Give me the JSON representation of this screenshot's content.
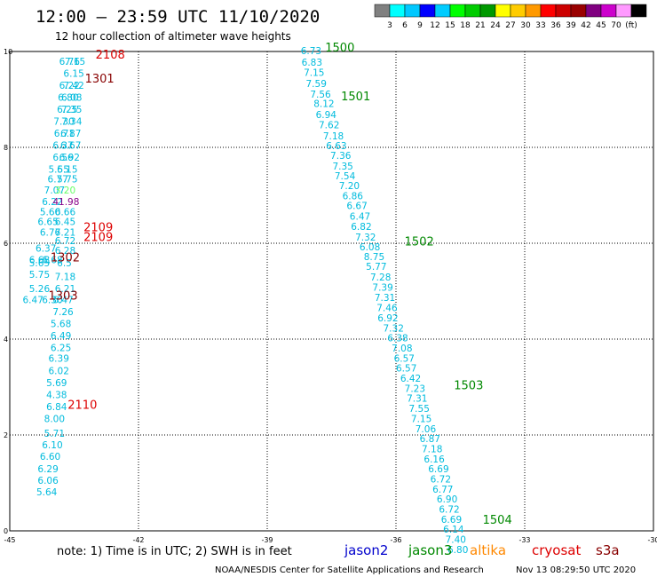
{
  "header": {
    "title": "12:00 – 23:59 UTC 11/10/2020",
    "subtitle": "12 hour collection of altimeter wave heights"
  },
  "colorbar": {
    "colors": [
      "#808080",
      "#00ffff",
      "#00c8ff",
      "#0000ff",
      "#00ccff",
      "#00ff00",
      "#00cc00",
      "#009900",
      "#ffff00",
      "#ffcc00",
      "#ff9900",
      "#ff0000",
      "#cc0000",
      "#990000",
      "#800080",
      "#cc00cc",
      "#ff99ff",
      "#000000"
    ],
    "labels": [
      "3",
      "6",
      "9",
      "12",
      "15",
      "18",
      "21",
      "24",
      "27",
      "30",
      "33",
      "36",
      "39",
      "42",
      "45",
      "70",
      "(ft)"
    ]
  },
  "footer": {
    "note": "note:  1) Time is in UTC; 2) SWH is in feet",
    "credit": "NOAA/NESDIS Center for Satellite Applications and Research",
    "timestamp": "Nov 13 08:29:50 UTC 2020",
    "satellites": [
      {
        "name": "jason2",
        "color": "#0000cc"
      },
      {
        "name": "jason3",
        "color": "#008800"
      },
      {
        "name": "altika",
        "color": "#ff8800"
      },
      {
        "name": "cryosat",
        "color": "#dd0000"
      },
      {
        "name": "s3a",
        "color": "#880000"
      }
    ]
  },
  "chart_data": {
    "type": "scatter",
    "title": "12 hour collection of altimeter wave heights",
    "xlim": [
      -45,
      -30
    ],
    "ylim": [
      0,
      10
    ],
    "xticks": [
      "-45",
      "-42",
      "-39",
      "-36",
      "-33",
      "-30"
    ],
    "yticks": [
      "0",
      "2",
      "4",
      "6",
      "8",
      "10"
    ],
    "grid": true,
    "points": [
      {
        "x": -43.85,
        "y": 9.72,
        "v": "6.76",
        "color": "#00bbdd"
      },
      {
        "x": -43.72,
        "y": 9.72,
        "v": "7.15",
        "color": "#00bbdd"
      },
      {
        "x": -43.75,
        "y": 9.47,
        "v": "6.15",
        "color": "#00bbdd"
      },
      {
        "x": -43.85,
        "y": 9.22,
        "v": "6.22",
        "color": "#00bbdd"
      },
      {
        "x": -43.75,
        "y": 9.22,
        "v": "7.42",
        "color": "#00bbdd"
      },
      {
        "x": -43.88,
        "y": 8.97,
        "v": "6.80",
        "color": "#00bbdd"
      },
      {
        "x": -43.8,
        "y": 8.97,
        "v": "6.08",
        "color": "#00bbdd"
      },
      {
        "x": -43.9,
        "y": 8.72,
        "v": "6.25",
        "color": "#00bbdd"
      },
      {
        "x": -43.8,
        "y": 8.72,
        "v": "7.35",
        "color": "#00bbdd"
      },
      {
        "x": -43.98,
        "y": 8.47,
        "v": "7.30",
        "color": "#00bbdd"
      },
      {
        "x": -43.8,
        "y": 8.47,
        "v": "7.34",
        "color": "#00bbdd"
      },
      {
        "x": -43.97,
        "y": 8.22,
        "v": "6.71",
        "color": "#00bbdd"
      },
      {
        "x": -43.82,
        "y": 8.22,
        "v": "6.87",
        "color": "#00bbdd"
      },
      {
        "x": -44.0,
        "y": 7.97,
        "v": "6.37",
        "color": "#00bbdd"
      },
      {
        "x": -43.82,
        "y": 7.97,
        "v": "6.67",
        "color": "#00bbdd"
      },
      {
        "x": -44.0,
        "y": 7.72,
        "v": "6.56",
        "color": "#00bbdd"
      },
      {
        "x": -43.85,
        "y": 7.72,
        "v": "6.92",
        "color": "#00bbdd"
      },
      {
        "x": -44.1,
        "y": 7.47,
        "v": "5.55",
        "color": "#00bbdd"
      },
      {
        "x": -43.9,
        "y": 7.47,
        "v": "6.15",
        "color": "#00bbdd"
      },
      {
        "x": -44.12,
        "y": 7.27,
        "v": "6.77",
        "color": "#00bbdd"
      },
      {
        "x": -43.9,
        "y": 7.27,
        "v": "5.75",
        "color": "#00bbdd"
      },
      {
        "x": -44.2,
        "y": 7.04,
        "v": "7.07",
        "color": "#00bbdd"
      },
      {
        "x": -43.95,
        "y": 7.04,
        "v": "3.20",
        "color": "#66ff66"
      },
      {
        "x": -44.25,
        "y": 6.8,
        "v": "6.22",
        "color": "#00bbdd"
      },
      {
        "x": -44.0,
        "y": 6.8,
        "v": "41.98",
        "color": "#880088"
      },
      {
        "x": -44.3,
        "y": 6.58,
        "v": "5.60",
        "color": "#00bbdd"
      },
      {
        "x": -43.95,
        "y": 6.58,
        "v": "6.66",
        "color": "#00bbdd"
      },
      {
        "x": -44.35,
        "y": 6.38,
        "v": "6.65",
        "color": "#00bbdd"
      },
      {
        "x": -43.95,
        "y": 6.38,
        "v": "6.45",
        "color": "#00bbdd"
      },
      {
        "x": -44.3,
        "y": 6.16,
        "v": "6.76",
        "color": "#00bbdd"
      },
      {
        "x": -43.95,
        "y": 6.16,
        "v": "7.21",
        "color": "#00bbdd"
      },
      {
        "x": -43.95,
        "y": 5.98,
        "v": "6.72",
        "color": "#00bbdd"
      },
      {
        "x": -44.4,
        "y": 5.82,
        "v": "6.37",
        "color": "#00bbdd"
      },
      {
        "x": -43.95,
        "y": 5.78,
        "v": "6.28",
        "color": "#00bbdd"
      },
      {
        "x": -44.55,
        "y": 5.58,
        "v": "6.68",
        "color": "#00bbdd"
      },
      {
        "x": -44.25,
        "y": 5.58,
        "v": "6.68",
        "color": "#00bbdd"
      },
      {
        "x": -44.55,
        "y": 5.52,
        "v": "5.65",
        "color": "#00bbdd"
      },
      {
        "x": -43.9,
        "y": 5.52,
        "v": "6.5",
        "color": "#00bbdd"
      },
      {
        "x": -44.55,
        "y": 5.28,
        "v": "5.75",
        "color": "#00bbdd"
      },
      {
        "x": -43.95,
        "y": 5.23,
        "v": "7.18",
        "color": "#00bbdd"
      },
      {
        "x": -44.55,
        "y": 4.98,
        "v": "5.26",
        "color": "#00bbdd"
      },
      {
        "x": -43.95,
        "y": 4.98,
        "v": "6.21",
        "color": "#00bbdd"
      },
      {
        "x": -44.7,
        "y": 4.75,
        "v": "6.47",
        "color": "#00bbdd"
      },
      {
        "x": -44.25,
        "y": 4.75,
        "v": "6.30",
        "color": "#00bbdd"
      },
      {
        "x": -44.0,
        "y": 4.75,
        "v": "6.47",
        "color": "#00bbdd"
      },
      {
        "x": -44.0,
        "y": 4.5,
        "v": "7.26",
        "color": "#00bbdd"
      },
      {
        "x": -44.05,
        "y": 4.25,
        "v": "5.68",
        "color": "#00bbdd"
      },
      {
        "x": -44.05,
        "y": 4.0,
        "v": "6.49",
        "color": "#00bbdd"
      },
      {
        "x": -44.05,
        "y": 3.75,
        "v": "6.25",
        "color": "#00bbdd"
      },
      {
        "x": -44.1,
        "y": 3.53,
        "v": "6.39",
        "color": "#00bbdd"
      },
      {
        "x": -44.1,
        "y": 3.27,
        "v": "6.02",
        "color": "#00bbdd"
      },
      {
        "x": -44.15,
        "y": 3.02,
        "v": "5.69",
        "color": "#00bbdd"
      },
      {
        "x": -44.15,
        "y": 2.77,
        "v": "4.38",
        "color": "#00bbdd"
      },
      {
        "x": -44.15,
        "y": 2.52,
        "v": "6.84",
        "color": "#00bbdd"
      },
      {
        "x": -44.2,
        "y": 2.27,
        "v": "8.00",
        "color": "#00bbdd"
      },
      {
        "x": -44.2,
        "y": 1.96,
        "v": "5.71",
        "color": "#00bbdd"
      },
      {
        "x": -44.25,
        "y": 1.72,
        "v": "6.10",
        "color": "#00bbdd"
      },
      {
        "x": -44.3,
        "y": 1.48,
        "v": "6.60",
        "color": "#00bbdd"
      },
      {
        "x": -44.35,
        "y": 1.22,
        "v": "6.29",
        "color": "#00bbdd"
      },
      {
        "x": -44.35,
        "y": 0.98,
        "v": "6.06",
        "color": "#00bbdd"
      },
      {
        "x": -44.38,
        "y": 0.74,
        "v": "5.64",
        "color": "#00bbdd"
      },
      {
        "x": -38.22,
        "y": 9.94,
        "v": "6.73",
        "color": "#00bbdd"
      },
      {
        "x": -38.2,
        "y": 9.7,
        "v": "6.83",
        "color": "#00bbdd"
      },
      {
        "x": -38.15,
        "y": 9.49,
        "v": "7.15",
        "color": "#00bbdd"
      },
      {
        "x": -38.1,
        "y": 9.26,
        "v": "7.59",
        "color": "#00bbdd"
      },
      {
        "x": -38.0,
        "y": 9.04,
        "v": "7.56",
        "color": "#00bbdd"
      },
      {
        "x": -37.92,
        "y": 8.84,
        "v": "8.12",
        "color": "#00bbdd"
      },
      {
        "x": -37.87,
        "y": 8.61,
        "v": "6.94",
        "color": "#00bbdd"
      },
      {
        "x": -37.8,
        "y": 8.4,
        "v": "7.62",
        "color": "#00bbdd"
      },
      {
        "x": -37.7,
        "y": 8.17,
        "v": "7.18",
        "color": "#00bbdd"
      },
      {
        "x": -37.63,
        "y": 7.96,
        "v": "6.63",
        "color": "#00bbdd"
      },
      {
        "x": -37.53,
        "y": 7.76,
        "v": "7.36",
        "color": "#00bbdd"
      },
      {
        "x": -37.48,
        "y": 7.54,
        "v": "7.35",
        "color": "#00bbdd"
      },
      {
        "x": -37.43,
        "y": 7.33,
        "v": "7.54",
        "color": "#00bbdd"
      },
      {
        "x": -37.33,
        "y": 7.13,
        "v": "7.20",
        "color": "#00bbdd"
      },
      {
        "x": -37.25,
        "y": 6.92,
        "v": "6.86",
        "color": "#00bbdd"
      },
      {
        "x": -37.15,
        "y": 6.71,
        "v": "6.67",
        "color": "#00bbdd"
      },
      {
        "x": -37.08,
        "y": 6.49,
        "v": "6.47",
        "color": "#00bbdd"
      },
      {
        "x": -37.05,
        "y": 6.28,
        "v": "6.82",
        "color": "#00bbdd"
      },
      {
        "x": -36.95,
        "y": 6.06,
        "v": "7.32",
        "color": "#00bbdd"
      },
      {
        "x": -36.85,
        "y": 5.85,
        "v": "6.08",
        "color": "#00bbdd"
      },
      {
        "x": -36.75,
        "y": 5.65,
        "v": "8.75",
        "color": "#00bbdd"
      },
      {
        "x": -36.7,
        "y": 5.44,
        "v": "5.77",
        "color": "#00bbdd"
      },
      {
        "x": -36.6,
        "y": 5.22,
        "v": "7.28",
        "color": "#00bbdd"
      },
      {
        "x": -36.55,
        "y": 5.01,
        "v": "7.39",
        "color": "#00bbdd"
      },
      {
        "x": -36.5,
        "y": 4.8,
        "v": "7.31",
        "color": "#00bbdd"
      },
      {
        "x": -36.45,
        "y": 4.58,
        "v": "7.46",
        "color": "#00bbdd"
      },
      {
        "x": -36.43,
        "y": 4.37,
        "v": "6.92",
        "color": "#00bbdd"
      },
      {
        "x": -36.3,
        "y": 4.16,
        "v": "7.32",
        "color": "#00bbdd"
      },
      {
        "x": -36.2,
        "y": 3.95,
        "v": "6.38",
        "color": "#00bbdd"
      },
      {
        "x": -36.1,
        "y": 3.74,
        "v": "7.08",
        "color": "#00bbdd"
      },
      {
        "x": -36.05,
        "y": 3.53,
        "v": "6.57",
        "color": "#00bbdd"
      },
      {
        "x": -36.0,
        "y": 3.32,
        "v": "6.57",
        "color": "#00bbdd"
      },
      {
        "x": -35.9,
        "y": 3.11,
        "v": "6.42",
        "color": "#00bbdd"
      },
      {
        "x": -35.8,
        "y": 2.9,
        "v": "7.23",
        "color": "#00bbdd"
      },
      {
        "x": -35.75,
        "y": 2.69,
        "v": "7.31",
        "color": "#00bbdd"
      },
      {
        "x": -35.7,
        "y": 2.48,
        "v": "7.55",
        "color": "#00bbdd"
      },
      {
        "x": -35.65,
        "y": 2.27,
        "v": "7.15",
        "color": "#00bbdd"
      },
      {
        "x": -35.55,
        "y": 2.06,
        "v": "7.06",
        "color": "#00bbdd"
      },
      {
        "x": -35.45,
        "y": 1.85,
        "v": "6.87",
        "color": "#00bbdd"
      },
      {
        "x": -35.4,
        "y": 1.64,
        "v": "7.18",
        "color": "#00bbdd"
      },
      {
        "x": -35.35,
        "y": 1.43,
        "v": "6.16",
        "color": "#00bbdd"
      },
      {
        "x": -35.25,
        "y": 1.22,
        "v": "6.69",
        "color": "#00bbdd"
      },
      {
        "x": -35.2,
        "y": 1.01,
        "v": "6.72",
        "color": "#00bbdd"
      },
      {
        "x": -35.15,
        "y": 0.8,
        "v": "6.77",
        "color": "#00bbdd"
      },
      {
        "x": -35.05,
        "y": 0.59,
        "v": "6.90",
        "color": "#00bbdd"
      },
      {
        "x": -35.0,
        "y": 0.38,
        "v": "6.72",
        "color": "#00bbdd"
      },
      {
        "x": -34.95,
        "y": 0.17,
        "v": "6.69",
        "color": "#00bbdd"
      },
      {
        "x": -34.9,
        "y": -0.04,
        "v": "6.14",
        "color": "#00bbdd"
      },
      {
        "x": -34.85,
        "y": -0.25,
        "v": "7.40",
        "color": "#00bbdd"
      },
      {
        "x": -34.8,
        "y": -0.46,
        "v": "6.80",
        "color": "#00bbdd"
      }
    ],
    "pass_labels": [
      {
        "x": -43.0,
        "y": 9.85,
        "text": "2108",
        "color": "#dd0000"
      },
      {
        "x": -43.25,
        "y": 9.35,
        "text": "1301",
        "color": "#880000"
      },
      {
        "x": -43.28,
        "y": 6.25,
        "text": "2109",
        "color": "#dd0000"
      },
      {
        "x": -43.28,
        "y": 6.05,
        "text": "2109",
        "color": "#dd0000"
      },
      {
        "x": -44.05,
        "y": 5.62,
        "text": "1302",
        "color": "#880000"
      },
      {
        "x": -44.1,
        "y": 4.82,
        "text": "1303",
        "color": "#880000"
      },
      {
        "x": -43.65,
        "y": 2.55,
        "text": "2110",
        "color": "#dd0000"
      },
      {
        "x": -37.65,
        "y": 10.0,
        "text": "1500",
        "color": "#008800"
      },
      {
        "x": -37.28,
        "y": 8.98,
        "text": "1501",
        "color": "#008800"
      },
      {
        "x": -35.8,
        "y": 5.95,
        "text": "1502",
        "color": "#008800"
      },
      {
        "x": -34.65,
        "y": 2.95,
        "text": "1503",
        "color": "#008800"
      },
      {
        "x": -33.98,
        "y": 0.15,
        "text": "1504",
        "color": "#008800"
      }
    ]
  }
}
